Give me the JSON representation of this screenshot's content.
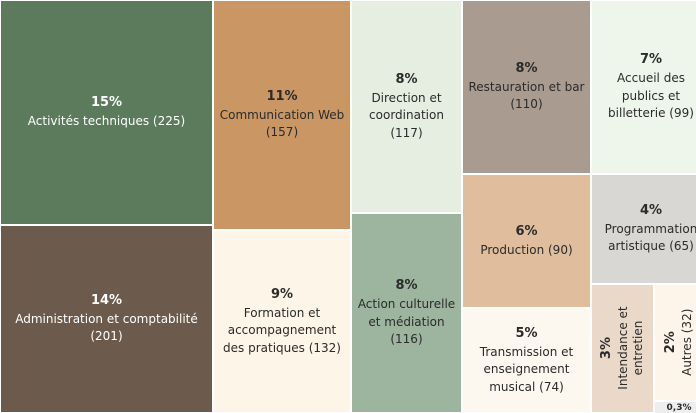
{
  "chart_data": {
    "type": "treemap",
    "categories": [
      "Activités techniques (225)",
      "Administration et comptabilité (201)",
      "Communication Web (157)",
      "Formation et accompagnement des pratiques (132)",
      "Direction et coordination (117)",
      "Action culturelle et médiation (116)",
      "Restauration et bar (110)",
      "Production (90)",
      "Transmission et enseignement musical (74)",
      "Accueil des publics et billetterie (99)",
      "Programmation artistique (65)",
      "Intendance et entretien",
      "Autres (32)",
      null
    ],
    "values": [
      15,
      14,
      11,
      9,
      8,
      8,
      8,
      6,
      5,
      7,
      4,
      3,
      2,
      0.3
    ],
    "value_labels": [
      "15%",
      "14%",
      "11%",
      "9%",
      "8%",
      "8%",
      "8%",
      "6%",
      "5%",
      "7%",
      "4%",
      "3%",
      "2%",
      "0,3%"
    ],
    "colors": [
      "#5b7b5c",
      "#6c5b4c",
      "#c99664",
      "#fdf5e8",
      "#e5eee0",
      "#9db49f",
      "#a99b8f",
      "#dfbd9d",
      "#fdf8ef",
      "#eef5ea",
      "#d8d7d4",
      "#ead8c9",
      "#fdf5ea",
      "#eeeeee"
    ]
  }
}
